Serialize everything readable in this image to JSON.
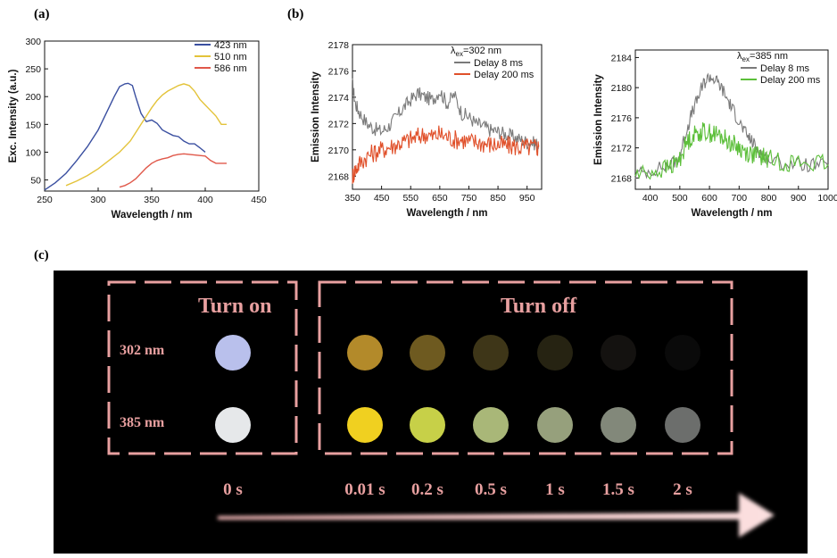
{
  "panel_labels": {
    "a": "(a)",
    "b": "(b)",
    "c": "(c)"
  },
  "chart_data": [
    {
      "id": "a",
      "type": "line",
      "title": "",
      "xlabel": "Wavelength / nm",
      "ylabel": "Exc. Intensity (a.u.)",
      "xlim": [
        250,
        450
      ],
      "ylim": [
        30,
        300
      ],
      "xticks": [
        250,
        300,
        350,
        400,
        450
      ],
      "yticks": [
        50,
        100,
        150,
        200,
        250,
        300
      ],
      "legend_position": "top-right",
      "series": [
        {
          "name": "423 nm",
          "color": "#3a4fa0",
          "x": [
            250,
            260,
            270,
            280,
            290,
            300,
            310,
            315,
            320,
            325,
            328,
            332,
            335,
            340,
            345,
            350,
            355,
            360,
            365,
            370,
            375,
            380,
            385,
            390,
            395,
            400
          ],
          "y": [
            32,
            45,
            62,
            85,
            110,
            140,
            180,
            200,
            218,
            223,
            224,
            220,
            200,
            170,
            155,
            158,
            152,
            140,
            135,
            130,
            128,
            120,
            115,
            115,
            108,
            100
          ]
        },
        {
          "name": "510 nm",
          "color": "#e3c33a",
          "x": [
            270,
            280,
            290,
            300,
            310,
            320,
            330,
            340,
            350,
            355,
            360,
            365,
            370,
            375,
            380,
            385,
            390,
            395,
            400,
            405,
            410,
            415,
            420
          ],
          "y": [
            40,
            48,
            58,
            70,
            85,
            100,
            120,
            150,
            180,
            193,
            203,
            210,
            215,
            220,
            223,
            220,
            210,
            195,
            185,
            175,
            165,
            150,
            150
          ]
        },
        {
          "name": "586 nm",
          "color": "#e0584a",
          "x": [
            320,
            325,
            330,
            335,
            340,
            345,
            350,
            355,
            360,
            365,
            370,
            375,
            380,
            385,
            390,
            395,
            400,
            405,
            410,
            415,
            420
          ],
          "y": [
            37,
            40,
            45,
            52,
            62,
            72,
            80,
            85,
            88,
            90,
            94,
            96,
            97,
            96,
            95,
            94,
            93,
            85,
            80,
            80,
            80
          ]
        }
      ]
    },
    {
      "id": "b1",
      "type": "line",
      "title": "",
      "xlabel": "Wavelength / nm",
      "ylabel": "Emission Intensity",
      "xlim": [
        350,
        1000
      ],
      "ylim": [
        2167,
        2178
      ],
      "xticks": [
        350,
        450,
        550,
        650,
        750,
        850,
        950
      ],
      "yticks": [
        2168,
        2170,
        2172,
        2174,
        2176,
        2178
      ],
      "legend_title": "λex=302 nm",
      "legend_position": "top-right",
      "series": [
        {
          "name": "Delay 8 ms",
          "color": "#7a7a7a",
          "x": [
            350,
            360,
            375,
            400,
            425,
            450,
            475,
            500,
            525,
            550,
            575,
            600,
            625,
            650,
            675,
            700,
            725,
            750,
            775,
            800,
            825,
            850,
            875,
            900,
            925,
            950,
            975,
            990
          ],
          "y": [
            2175.0,
            2173.5,
            2172.8,
            2172.0,
            2171.6,
            2171.4,
            2171.8,
            2172.5,
            2173.2,
            2173.8,
            2174.3,
            2174.0,
            2173.8,
            2174.5,
            2173.5,
            2174.2,
            2172.8,
            2172.5,
            2172.0,
            2171.8,
            2171.5,
            2171.4,
            2171.2,
            2171.0,
            2170.8,
            2170.6,
            2170.5,
            2170.4
          ]
        },
        {
          "name": "Delay 200 ms",
          "color": "#e0502a",
          "x": [
            350,
            360,
            375,
            400,
            425,
            450,
            475,
            500,
            525,
            550,
            575,
            600,
            625,
            650,
            675,
            700,
            725,
            750,
            775,
            800,
            825,
            850,
            875,
            900,
            925,
            950,
            975,
            990
          ],
          "y": [
            2168.0,
            2168.5,
            2169.0,
            2169.5,
            2169.8,
            2170.0,
            2170.2,
            2170.4,
            2170.6,
            2170.8,
            2171.0,
            2171.2,
            2171.0,
            2171.2,
            2171.0,
            2170.8,
            2170.8,
            2170.6,
            2170.6,
            2170.5,
            2170.4,
            2170.4,
            2170.3,
            2170.3,
            2170.2,
            2170.2,
            2170.2,
            2170.2
          ]
        }
      ]
    },
    {
      "id": "b2",
      "type": "line",
      "title": "",
      "xlabel": "Wavelength / nm",
      "ylabel": "Emission Intensity",
      "xlim": [
        350,
        1000
      ],
      "ylim": [
        2166.5,
        2185
      ],
      "xticks": [
        400,
        500,
        600,
        700,
        800,
        900,
        1000
      ],
      "yticks": [
        2168,
        2172,
        2176,
        2180,
        2184
      ],
      "legend_title": "λex=385 nm",
      "legend_position": "top-right",
      "series": [
        {
          "name": "Delay 8 ms",
          "color": "#7a7a7a",
          "x": [
            350,
            400,
            450,
            480,
            500,
            520,
            540,
            560,
            580,
            600,
            620,
            640,
            660,
            680,
            700,
            720,
            740,
            760,
            780,
            800,
            850,
            900,
            950,
            1000
          ],
          "y": [
            2168.5,
            2169.0,
            2169.5,
            2170.0,
            2171.0,
            2174.0,
            2176.5,
            2178.5,
            2180.5,
            2181.5,
            2181.0,
            2180.0,
            2178.5,
            2177.0,
            2175.5,
            2174.0,
            2173.0,
            2172.0,
            2171.0,
            2170.5,
            2170.0,
            2169.8,
            2169.7,
            2169.6
          ]
        },
        {
          "name": "Delay 200 ms",
          "color": "#5cbf3a",
          "x": [
            350,
            400,
            450,
            480,
            500,
            520,
            540,
            560,
            580,
            600,
            620,
            640,
            660,
            680,
            700,
            720,
            740,
            760,
            780,
            800,
            850,
            900,
            950,
            1000
          ],
          "y": [
            2168.5,
            2168.8,
            2169.2,
            2169.8,
            2170.5,
            2172.5,
            2173.5,
            2174.0,
            2174.2,
            2174.0,
            2173.8,
            2173.5,
            2173.0,
            2172.5,
            2172.0,
            2171.5,
            2171.2,
            2171.0,
            2170.8,
            2170.5,
            2170.2,
            2170.0,
            2169.9,
            2169.8
          ]
        }
      ]
    }
  ],
  "photo": {
    "turn_on_label": "Turn on",
    "turn_off_label": "Turn off",
    "rows": [
      {
        "label": "302 nm",
        "on_color": "#b9c0ec",
        "off_colors": [
          "#b38a2a",
          "#6e5a20",
          "#3e3618",
          "#262312",
          "#141210",
          "#0a0a0a"
        ]
      },
      {
        "label": "385 nm",
        "on_color": "#e6e8ea",
        "off_colors": [
          "#f0d020",
          "#c7d048",
          "#a9b778",
          "#96a07c",
          "#82887a",
          "#6c6e6c"
        ]
      }
    ],
    "times": [
      "0 s",
      "0.01 s",
      "0.2 s",
      "0.5 s",
      "1 s",
      "1.5 s",
      "2 s"
    ],
    "frame_color": "#e8a0a0",
    "arrow_color": "#f7c6c6"
  }
}
